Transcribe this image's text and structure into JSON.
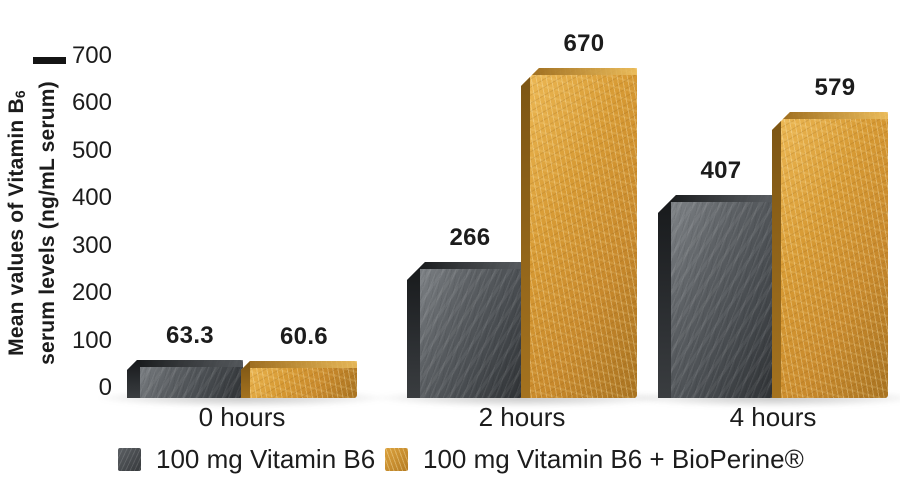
{
  "chart_data": {
    "type": "bar",
    "categories": [
      "0 hours",
      "2 hours",
      "4 hours"
    ],
    "series": [
      {
        "name": "100 mg Vitamin B6",
        "color": "#55585c",
        "values": [
          63.3,
          266,
          407
        ],
        "value_labels": [
          "63.3",
          "266",
          "407"
        ]
      },
      {
        "name": "100 mg Vitamin B6 + BioPerine®",
        "color": "#d0922f",
        "values": [
          60.6,
          670,
          579
        ],
        "value_labels": [
          "60.6",
          "670",
          "579"
        ]
      }
    ],
    "ylabel": {
      "line1_main": "Mean values of Vitamin B",
      "line1_sub": "6",
      "line2": "serum levels (ng/mL serum)"
    },
    "yticks": [
      0,
      100,
      200,
      300,
      400,
      500,
      600,
      700
    ],
    "ylim": [
      0,
      700
    ],
    "grid": false,
    "legend_position": "bottom",
    "text_color": "#1c1c1c",
    "background_color": "#ffffff"
  }
}
